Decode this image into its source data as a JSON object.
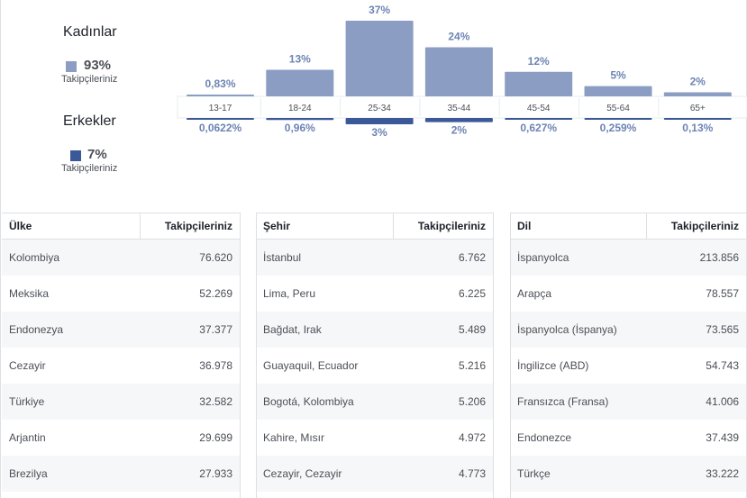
{
  "gender": {
    "women": {
      "title": "Kadınlar",
      "percent": "93%",
      "sublabel": "Takipçileriniz",
      "color": "#8b9dc3"
    },
    "men": {
      "title": "Erkekler",
      "percent": "7%",
      "sublabel": "Takipçileriniz",
      "color": "#3b5998"
    }
  },
  "chart_data": {
    "type": "bar",
    "categories": [
      "13-17",
      "18-24",
      "25-34",
      "35-44",
      "45-54",
      "55-64",
      "65+"
    ],
    "series": [
      {
        "name": "Kadınlar",
        "values": [
          0.83,
          13,
          37,
          24,
          12,
          5,
          2
        ],
        "labels": [
          "0,83%",
          "13%",
          "37%",
          "24%",
          "12%",
          "5%",
          "2%"
        ],
        "color": "#8b9dc3"
      },
      {
        "name": "Erkekler",
        "values": [
          0.0622,
          0.96,
          3,
          2,
          0.627,
          0.259,
          0.13
        ],
        "labels": [
          "0,0622%",
          "0,96%",
          "3%",
          "2%",
          "0,627%",
          "0,259%",
          "0,13%"
        ],
        "color": "#3b5998"
      }
    ],
    "ylim": [
      0,
      37
    ]
  },
  "tables": {
    "country": {
      "header": "Ülke",
      "value_header": "Takipçileriniz",
      "rows": [
        {
          "name": "Kolombiya",
          "value": "76.620"
        },
        {
          "name": "Meksika",
          "value": "52.269"
        },
        {
          "name": "Endonezya",
          "value": "37.377"
        },
        {
          "name": "Cezayir",
          "value": "36.978"
        },
        {
          "name": "Türkiye",
          "value": "32.582"
        },
        {
          "name": "Arjantin",
          "value": "29.699"
        },
        {
          "name": "Brezilya",
          "value": "27.933"
        }
      ]
    },
    "city": {
      "header": "Şehir",
      "value_header": "Takipçileriniz",
      "rows": [
        {
          "name": "İstanbul",
          "value": "6.762"
        },
        {
          "name": "Lima, Peru",
          "value": "6.225"
        },
        {
          "name": "Bağdat, Irak",
          "value": "5.489"
        },
        {
          "name": "Guayaquil, Ecuador",
          "value": "5.216"
        },
        {
          "name": "Bogotá, Kolombiya",
          "value": "5.206"
        },
        {
          "name": "Kahire, Mısır",
          "value": "4.972"
        },
        {
          "name": "Cezayir, Cezayir",
          "value": "4.773"
        }
      ]
    },
    "language": {
      "header": "Dil",
      "value_header": "Takipçileriniz",
      "rows": [
        {
          "name": "İspanyolca",
          "value": "213.856"
        },
        {
          "name": "Arapça",
          "value": "78.557"
        },
        {
          "name": "İspanyolca (İspanya)",
          "value": "73.565"
        },
        {
          "name": "İngilizce (ABD)",
          "value": "54.743"
        },
        {
          "name": "Fransızca (Fransa)",
          "value": "41.006"
        },
        {
          "name": "Endonezce",
          "value": "37.439"
        },
        {
          "name": "Türkçe",
          "value": "33.222"
        }
      ]
    }
  }
}
